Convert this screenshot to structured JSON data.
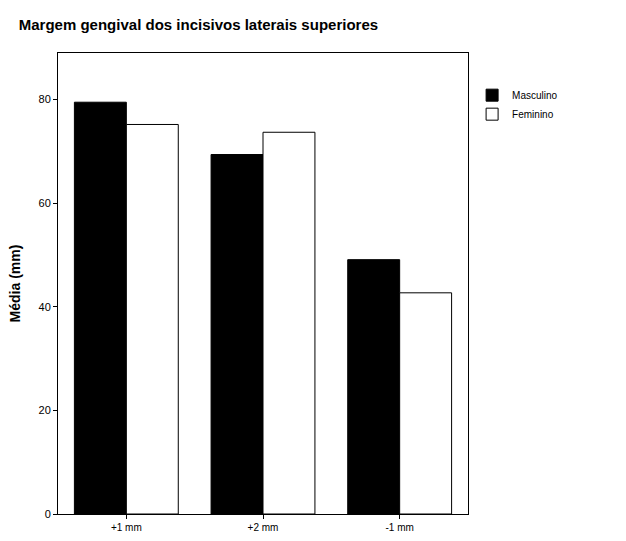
{
  "chart_data": {
    "type": "bar",
    "title": "Margem gengival dos incisivos laterais superiores",
    "y_label": "Média (mm)",
    "categories": [
      "+1 mm",
      "+2 mm",
      "-1 mm"
    ],
    "series": [
      {
        "name": "Masculino",
        "color": "#000000",
        "values": [
          79.5,
          69.4,
          49.1
        ]
      },
      {
        "name": "Feminino",
        "color": "#ffffff",
        "values": [
          75.2,
          73.7,
          42.7
        ]
      }
    ],
    "ylim": [
      0,
      89
    ],
    "yticks": [
      0,
      20,
      40,
      60,
      80
    ],
    "grid": false,
    "legend": "top right"
  }
}
